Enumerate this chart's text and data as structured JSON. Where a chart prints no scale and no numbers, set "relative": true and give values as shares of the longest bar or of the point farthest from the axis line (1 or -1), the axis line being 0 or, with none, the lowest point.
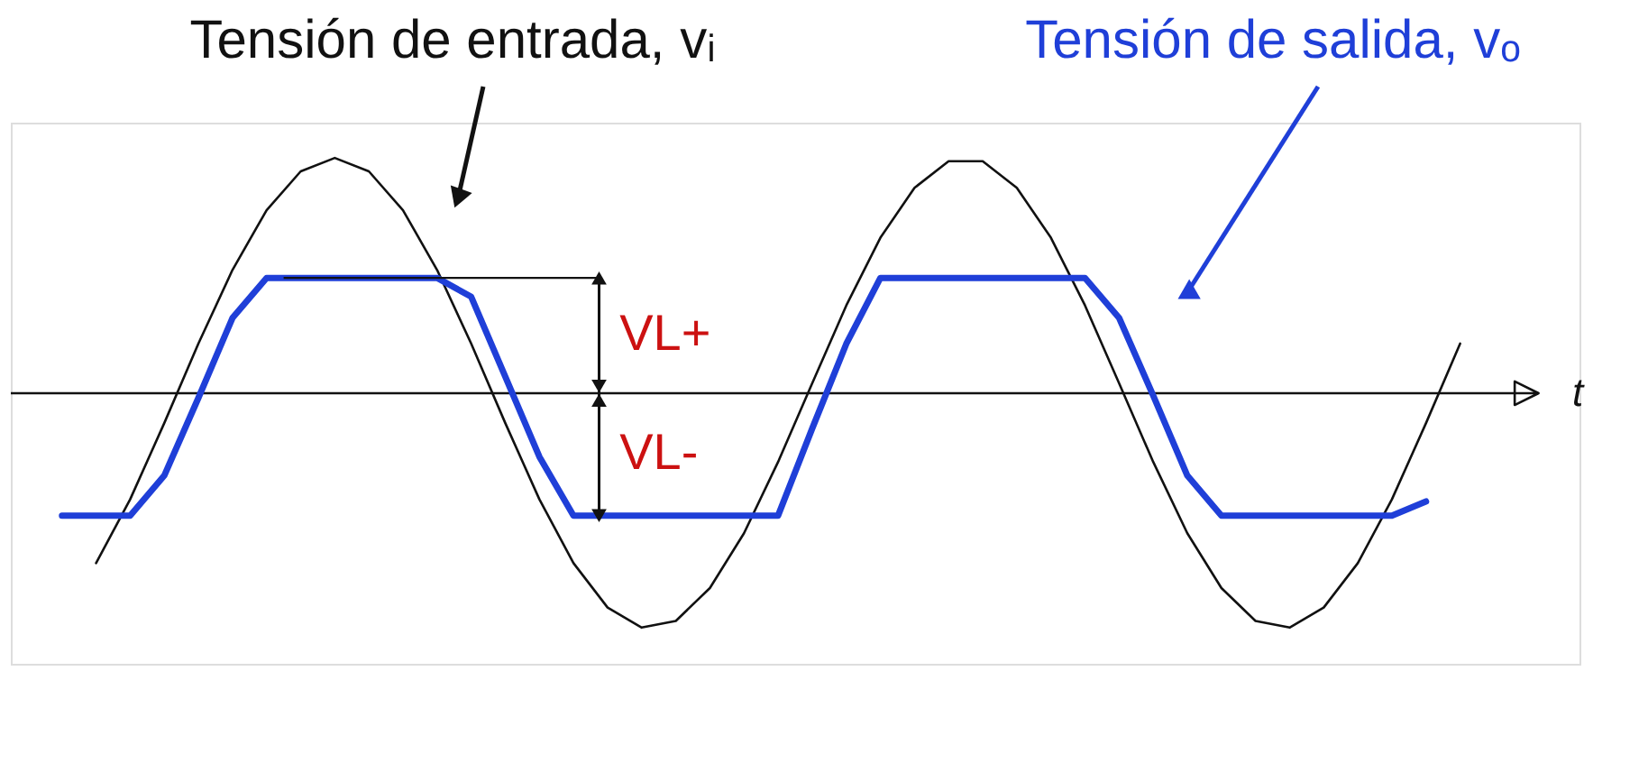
{
  "chart_data": {
    "type": "line",
    "relative": true,
    "xlabel": "t",
    "legend": false,
    "tick_labels": false,
    "categories": [
      null,
      null,
      null,
      null,
      null,
      null,
      null,
      null,
      null,
      null,
      null,
      null,
      null,
      null,
      null,
      null,
      null,
      null,
      null,
      null,
      null,
      null,
      null,
      null,
      null,
      null,
      null,
      null,
      null,
      null,
      null,
      null,
      null,
      null,
      null,
      null,
      null,
      null,
      null,
      null,
      null,
      null
    ],
    "series": [
      {
        "name": "Tensión de entrada, vᵢ",
        "color": "#111111",
        "values": [
          null,
          -0.722,
          -0.451,
          -0.127,
          0.211,
          0.524,
          0.778,
          0.943,
          1,
          0.943,
          0.778,
          0.524,
          0.211,
          -0.127,
          -0.451,
          -0.722,
          -0.911,
          -0.996,
          -0.968,
          -0.828,
          -0.595,
          -0.292,
          0.042,
          0.373,
          0.661,
          0.873,
          0.986,
          0.986,
          0.873,
          0.661,
          0.373,
          0.042,
          -0.292,
          -0.595,
          -0.828,
          -0.968,
          -0.996,
          -0.911,
          -0.722,
          -0.451,
          -0.127,
          0.211
        ]
      },
      {
        "name": "Tensión de salida, vₒ",
        "color": "#1f3fd8",
        "values": [
          -0.52,
          -0.52,
          -0.52,
          -0.35,
          -0.02,
          0.32,
          0.49,
          0.49,
          0.49,
          0.49,
          0.49,
          0.49,
          0.41,
          0.07,
          -0.27,
          -0.52,
          -0.52,
          -0.52,
          -0.52,
          -0.52,
          -0.52,
          -0.52,
          -0.15,
          0.21,
          0.49,
          0.49,
          0.49,
          0.49,
          0.49,
          0.49,
          0.49,
          0.32,
          -0.01,
          -0.35,
          -0.52,
          -0.52,
          -0.52,
          -0.52,
          -0.52,
          -0.52,
          -0.46,
          null
        ]
      }
    ],
    "annotations": [
      "VL+",
      "VL-"
    ]
  }
}
